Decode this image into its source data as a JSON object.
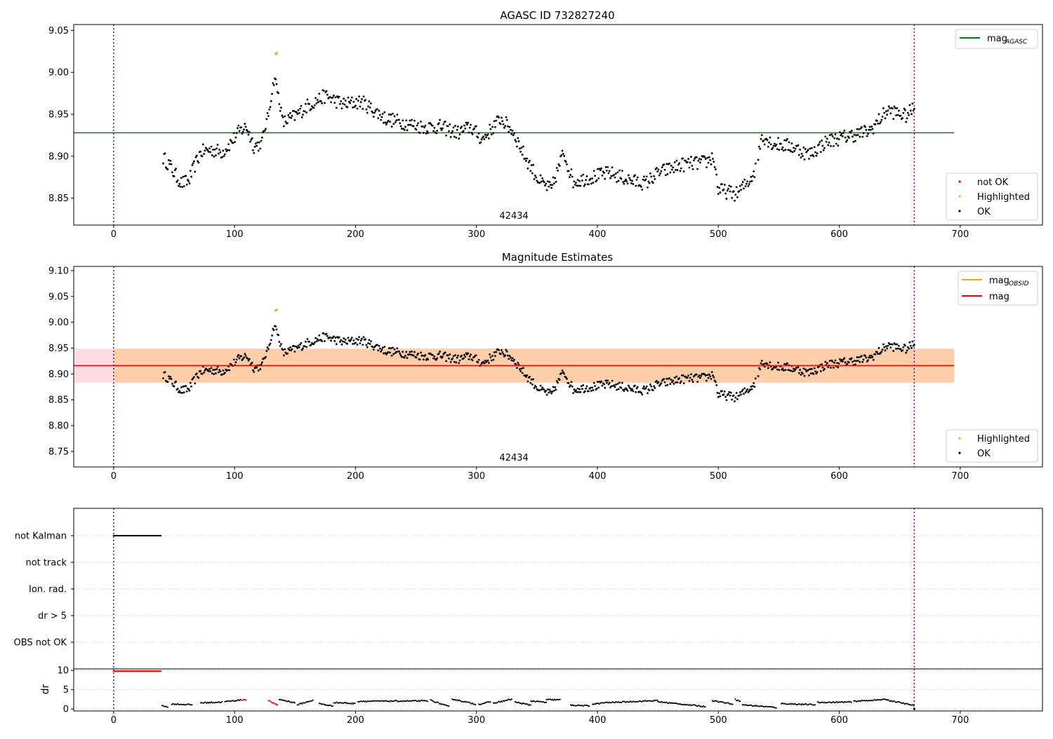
{
  "figure_title": "AGASC ID 732827240",
  "chart_data": [
    {
      "type": "scatter",
      "title": "AGASC ID 732827240",
      "xlim": [
        -33,
        768
      ],
      "ylim": [
        8.818,
        9.057
      ],
      "xticks": [
        0,
        100,
        200,
        300,
        400,
        500,
        600,
        700
      ],
      "yticks": [
        8.85,
        8.9,
        8.95,
        9.0,
        9.05
      ],
      "ytick_labels": [
        "8.85",
        "8.90",
        "8.95",
        "9.00",
        "9.05"
      ],
      "mag_agasc": 8.928,
      "hline_range": [
        -33,
        695
      ],
      "vlines": [
        0,
        662
      ],
      "obsid_label": "42434",
      "obsid_label_x": 331,
      "highlight": [
        {
          "x": 135,
          "y": 9.023
        },
        {
          "x": 134,
          "y": 9.022
        }
      ],
      "legend_top": {
        "label": "mag",
        "sub": "AGASC",
        "color": "#008000"
      },
      "legend_bottom": [
        {
          "label": "not OK",
          "color": "#ff0000"
        },
        {
          "label": "Highlighted",
          "color": "#ffa500"
        },
        {
          "label": "OK",
          "color": "#000000"
        }
      ]
    },
    {
      "type": "scatter",
      "title": "Magnitude Estimates",
      "xlim": [
        -33,
        768
      ],
      "ylim": [
        8.72,
        9.108
      ],
      "xticks": [
        0,
        100,
        200,
        300,
        400,
        500,
        600,
        700
      ],
      "yticks": [
        8.75,
        8.8,
        8.85,
        8.9,
        8.95,
        9.0,
        9.05,
        9.1
      ],
      "ytick_labels": [
        "8.75",
        "8.80",
        "8.85",
        "8.90",
        "8.95",
        "9.00",
        "9.05",
        "9.10"
      ],
      "mag": 8.916,
      "band_outer": [
        8.883,
        8.949
      ],
      "band_inner": [
        8.883,
        8.949
      ],
      "band_range": [
        -33,
        695
      ],
      "vlines": [
        0,
        662
      ],
      "obsid_label": "42434",
      "obsid_label_x": 331,
      "highlight": [
        {
          "x": 135,
          "y": 9.024
        },
        {
          "x": 134,
          "y": 9.023
        }
      ],
      "legend_top": [
        {
          "label": "mag",
          "sub": "OBSID",
          "color": "#ffa500"
        },
        {
          "label": "mag",
          "sub": "",
          "color": "#ff0000"
        }
      ],
      "legend_bottom": [
        {
          "label": "Highlighted",
          "color": "#ffa500"
        },
        {
          "label": "OK",
          "color": "#000000"
        }
      ]
    },
    {
      "type": "flags",
      "categories": [
        "not Kalman",
        "not track",
        "Ion. rad.",
        "dr > 5",
        "OBS not OK"
      ],
      "not_kalman_range": [
        0,
        39
      ],
      "vlines": [
        0,
        662
      ]
    },
    {
      "type": "scatter",
      "ylabel": "dr",
      "xlim": [
        -33,
        768
      ],
      "ylim": [
        -0.5,
        10.4
      ],
      "xticks": [
        0,
        100,
        200,
        300,
        400,
        500,
        600,
        700
      ],
      "yticks": [
        0,
        5,
        10
      ],
      "ytick_labels": [
        "0",
        "5",
        "10"
      ],
      "high_dr_value": 9.8,
      "high_dr_range": [
        0,
        39
      ],
      "red_segments": [
        [
          105,
          110
        ],
        [
          128,
          135
        ]
      ],
      "vlines": [
        0,
        662
      ]
    }
  ]
}
